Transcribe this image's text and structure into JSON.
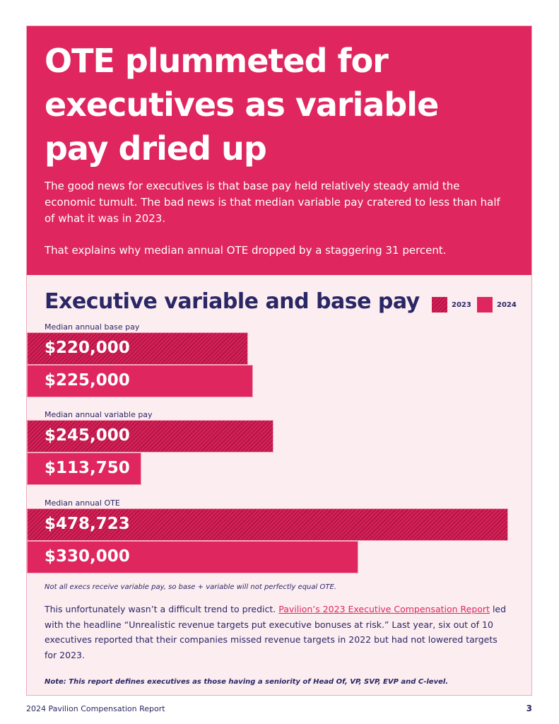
{
  "hero": {
    "title": "OTE plummeted for executives as variable pay dried up",
    "paragraph1": "The good news for executives is that base pay held relatively steady amid the economic tumult. The bad news is that median variable pay cratered to less than half of what it was in 2023.",
    "paragraph2": "That explains why median annual OTE dropped by a staggering 31 percent."
  },
  "chart_data": {
    "type": "bar",
    "orientation": "horizontal",
    "title": "Executive variable and base pay",
    "legend": [
      {
        "name": "2023",
        "style": "hatched",
        "color": "#d62258"
      },
      {
        "name": "2024",
        "style": "solid",
        "color": "#e0265f"
      }
    ],
    "categories": [
      "Median annual base pay",
      "Median annual variable pay",
      "Median annual OTE"
    ],
    "series": [
      {
        "name": "2023",
        "values": [
          220000,
          245000,
          478723
        ],
        "labels": [
          "$220,000",
          "$245,000",
          "$478,723"
        ]
      },
      {
        "name": "2024",
        "values": [
          225000,
          113750,
          330000
        ],
        "labels": [
          "$225,000",
          "$113,750",
          "$330,000"
        ]
      }
    ],
    "xlim": [
      0,
      478723
    ]
  },
  "footnote": "Not all execs receive variable pay, so base + variable will not perfectly equal OTE.",
  "body": {
    "before_link": "This unfortunately wasn’t a difficult trend to predict. ",
    "link_text": "Pavilion’s 2023 Executive Compensation Report",
    "after_link": " led with the headline “Unrealistic revenue targets put executive bonuses at risk.” Last year, six out of 10 executives reported that their companies missed revenue targets in 2022 but had not lowered targets for 2023."
  },
  "note": "Note: This report defines executives as those having a seniority of Head Of, VP, SVP, EVP and C-level.",
  "footer": {
    "report_name": "2024 Pavilion Compensation Report",
    "page_number": "3"
  }
}
